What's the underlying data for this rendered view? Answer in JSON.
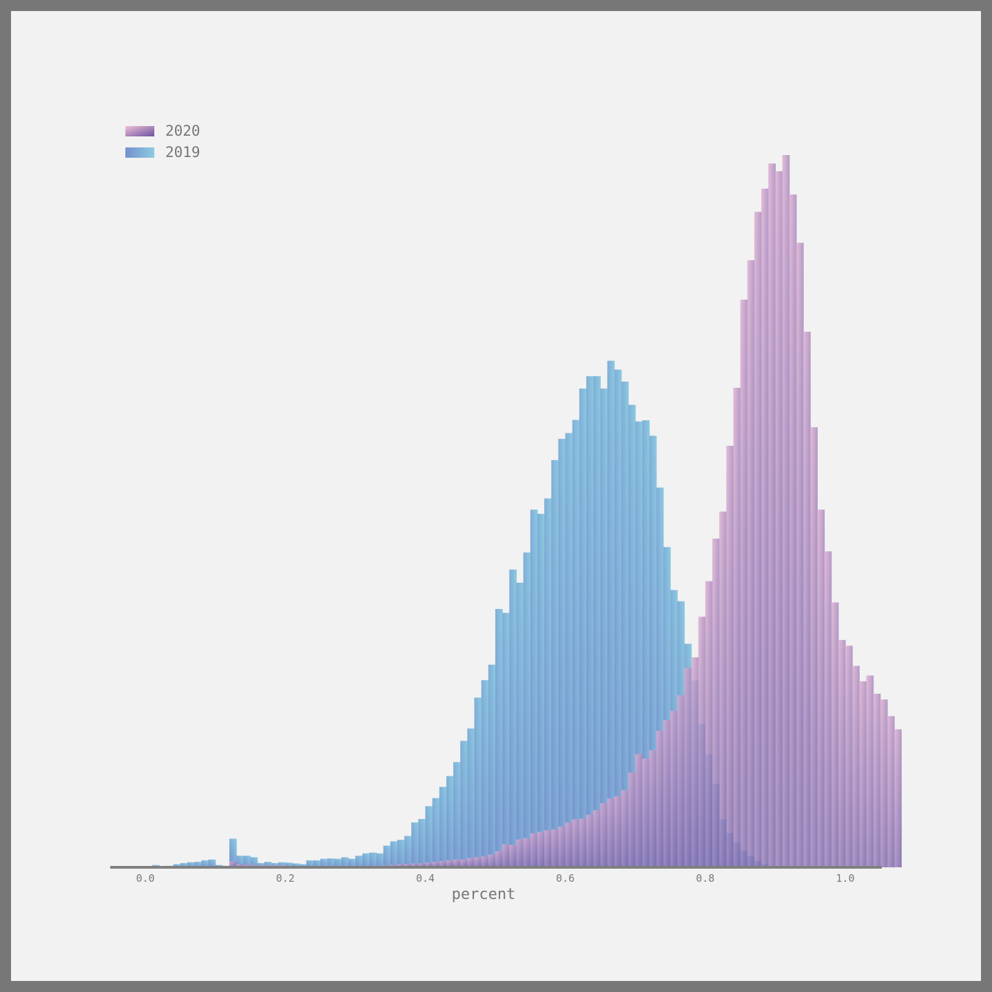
{
  "chart_data": {
    "type": "histogram",
    "title": "",
    "xlabel": "percent",
    "ylabel": "",
    "xlim": [
      -0.05,
      1.05
    ],
    "bin_start": 0.0,
    "bin_width": 0.01,
    "x_ticks": [
      "0.0",
      "0.2",
      "0.4",
      "0.6",
      "0.8",
      "1.0"
    ],
    "x_tick_values": [
      0.0,
      0.2,
      0.4,
      0.6,
      0.8,
      1.0
    ],
    "grid": false,
    "legend_position": "top-left",
    "series": [
      {
        "name": "2020",
        "gradient": [
          "#e8b8d0",
          "#6f5aa8"
        ],
        "values": [
          0,
          0,
          0,
          0,
          0,
          0,
          0,
          0,
          0,
          0,
          0,
          2,
          15,
          8,
          6,
          6,
          5,
          5,
          5,
          5,
          4,
          3,
          3,
          3,
          3,
          3,
          3,
          3,
          3,
          3,
          3,
          3,
          3,
          4,
          5,
          6,
          8,
          9,
          10,
          10,
          12,
          14,
          16,
          18,
          20,
          20,
          24,
          26,
          28,
          33,
          42,
          60,
          58,
          72,
          76,
          88,
          92,
          96,
          98,
          106,
          116,
          124,
          126,
          136,
          148,
          166,
          178,
          184,
          200,
          245,
          293,
          281,
          303,
          353,
          381,
          405,
          445,
          516,
          543,
          648,
          740,
          850,
          920,
          1090,
          1240,
          1468,
          1570,
          1695,
          1755,
          1820,
          1800,
          1842,
          1740,
          1615,
          1385,
          1138,
          925,
          817,
          685,
          588,
          573,
          521,
          481,
          496,
          449,
          434,
          391,
          357,
          0,
          0,
          0,
          0,
          0,
          0,
          0,
          0,
          0,
          0,
          0,
          0,
          0,
          0,
          0,
          0
        ]
      },
      {
        "name": "2019",
        "gradient": [
          "#7590cc",
          "#8ccbe2"
        ],
        "values": [
          0,
          6,
          2,
          4,
          8,
          11,
          13,
          14,
          18,
          20,
          6,
          4,
          74,
          30,
          30,
          26,
          11,
          14,
          11,
          13,
          12,
          10,
          8,
          18,
          18,
          22,
          23,
          22,
          26,
          22,
          30,
          36,
          38,
          36,
          56,
          67,
          71,
          81,
          116,
          125,
          158,
          179,
          208,
          236,
          272,
          327,
          359,
          439,
          484,
          524,
          668,
          658,
          770,
          736,
          814,
          925,
          914,
          954,
          1053,
          1108,
          1123,
          1157,
          1238,
          1270,
          1270,
          1238,
          1310,
          1287,
          1256,
          1196,
          1153,
          1156,
          1116,
          982,
          828,
          717,
          688,
          578,
          483,
          370,
          292,
          216,
          124,
          89,
          64,
          43,
          29,
          17,
          8,
          0,
          0,
          0,
          0,
          0,
          0,
          0,
          0,
          0,
          0,
          0,
          0,
          0,
          0,
          0,
          0,
          0,
          0,
          0,
          0,
          0,
          0,
          0,
          0,
          0,
          0,
          0,
          0,
          0,
          0,
          0,
          0
        ]
      }
    ],
    "y_max_data": 1842
  }
}
